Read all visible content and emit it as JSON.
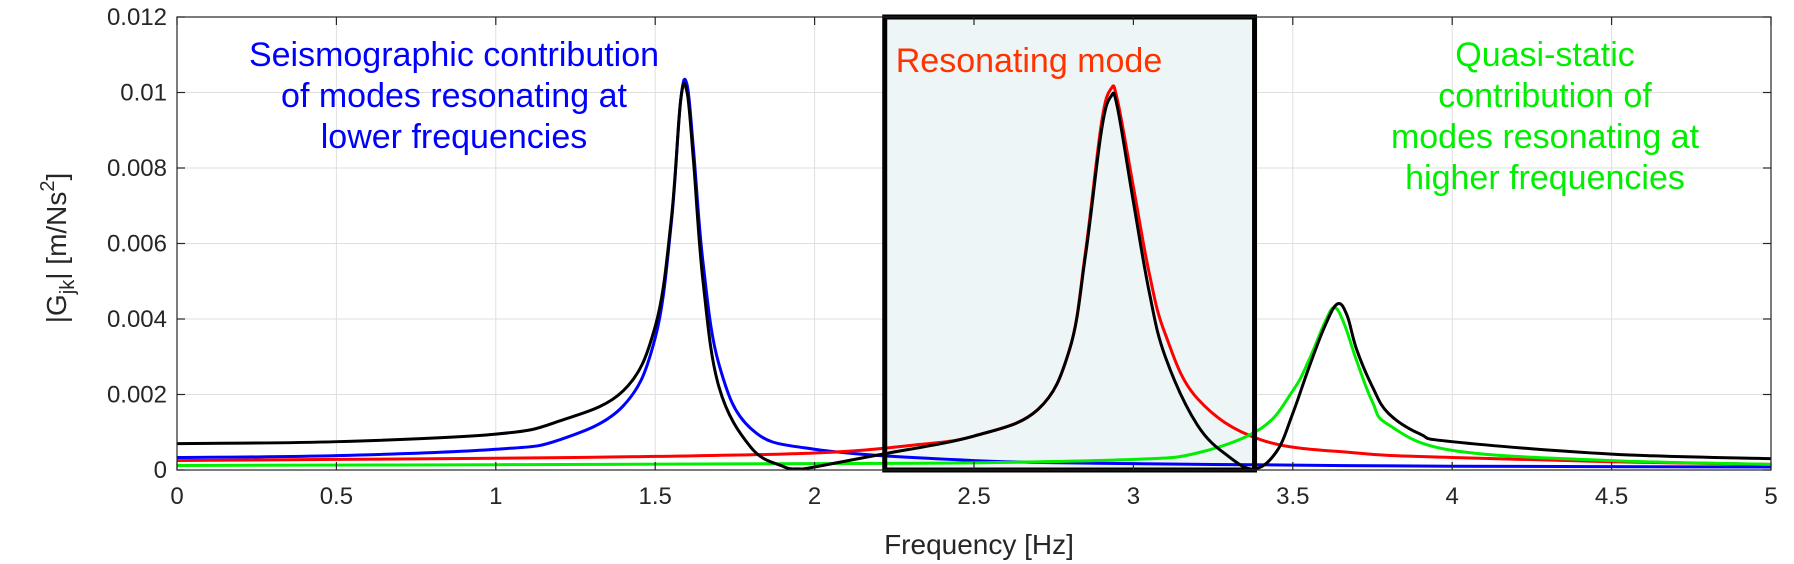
{
  "chart_data": {
    "type": "line",
    "title": "",
    "xlabel": "Frequency [Hz]",
    "ylabel": {
      "pre": "|G",
      "sub": "jk",
      "mid": "| [m/Ns",
      "sup": "2",
      "post": "]"
    },
    "xlim": [
      0,
      5
    ],
    "ylim": [
      0,
      0.012
    ],
    "xticks": [
      0,
      0.5,
      1,
      1.5,
      2,
      2.5,
      3,
      3.5,
      4,
      4.5,
      5
    ],
    "xtick_labels": [
      "0",
      "0.5",
      "1",
      "1.5",
      "2",
      "2.5",
      "3",
      "3.5",
      "4",
      "4.5",
      "5"
    ],
    "yticks": [
      0,
      0.002,
      0.004,
      0.006,
      0.008,
      0.01,
      0.012
    ],
    "ytick_labels": [
      "0",
      "0.002",
      "0.004",
      "0.006",
      "0.008",
      "0.01",
      "0.012"
    ],
    "grid": true,
    "highlight_band": {
      "x": [
        2.22,
        3.38
      ],
      "y": [
        0,
        0.012
      ],
      "fill": "#edf5f6",
      "stroke": "#000000"
    },
    "series": [
      {
        "color": "#0000ff",
        "x": [
          0,
          0.5,
          1,
          1.2,
          1.4,
          1.5,
          1.55,
          1.58,
          1.6,
          1.62,
          1.65,
          1.7,
          1.8,
          2,
          2.5,
          3,
          3.5,
          4,
          5
        ],
        "y": [
          0.00033,
          0.00038,
          0.00055,
          0.0008,
          0.0017,
          0.0035,
          0.0065,
          0.0098,
          0.0102,
          0.0085,
          0.0055,
          0.0028,
          0.0011,
          0.00055,
          0.00025,
          0.00017,
          0.00013,
          0.0001,
          8e-05
        ]
      },
      {
        "color": "#ff0000",
        "x": [
          0,
          0.5,
          1,
          1.5,
          2,
          2.3,
          2.5,
          2.7,
          2.8,
          2.85,
          2.9,
          2.93,
          2.95,
          3,
          3.05,
          3.1,
          3.2,
          3.4,
          3.7,
          4,
          4.5,
          5
        ],
        "y": [
          0.00025,
          0.00028,
          0.00031,
          0.00036,
          0.00045,
          0.00065,
          0.0009,
          0.0016,
          0.0032,
          0.0058,
          0.0092,
          0.0101,
          0.0098,
          0.0075,
          0.0052,
          0.0036,
          0.0019,
          0.0008,
          0.00045,
          0.00033,
          0.00022,
          0.00015
        ]
      },
      {
        "color": "#00ee00",
        "x": [
          0,
          1,
          2,
          2.5,
          3,
          3.2,
          3.4,
          3.5,
          3.55,
          3.6,
          3.63,
          3.66,
          3.7,
          3.75,
          3.8,
          4,
          4.5,
          5
        ],
        "y": [
          0.00012,
          0.00014,
          0.00017,
          0.00019,
          0.00028,
          0.00045,
          0.0011,
          0.0021,
          0.0029,
          0.0039,
          0.0043,
          0.0039,
          0.0029,
          0.0018,
          0.0012,
          0.00052,
          0.00025,
          0.00015
        ]
      },
      {
        "color": "#000000",
        "x": [
          0,
          0.5,
          1,
          1.2,
          1.4,
          1.5,
          1.55,
          1.58,
          1.6,
          1.62,
          1.65,
          1.7,
          1.8,
          1.9,
          1.95,
          2,
          2.2,
          2.5,
          2.7,
          2.8,
          2.85,
          2.9,
          2.93,
          2.95,
          3,
          3.05,
          3.1,
          3.2,
          3.3,
          3.38,
          3.45,
          3.5,
          3.55,
          3.6,
          3.64,
          3.67,
          3.7,
          3.75,
          3.8,
          3.9,
          4,
          4.5,
          5
        ],
        "y": [
          0.0007,
          0.00075,
          0.00095,
          0.0013,
          0.0021,
          0.0038,
          0.0066,
          0.0098,
          0.01,
          0.0082,
          0.005,
          0.0022,
          0.0006,
          0.0001,
          3e-05,
          8e-05,
          0.0004,
          0.0009,
          0.0016,
          0.0032,
          0.0057,
          0.009,
          0.0099,
          0.0096,
          0.0071,
          0.0047,
          0.003,
          0.0012,
          0.00035,
          3e-05,
          0.0005,
          0.0015,
          0.0027,
          0.0038,
          0.0044,
          0.0041,
          0.0032,
          0.0022,
          0.0015,
          0.00095,
          0.00075,
          0.00042,
          0.0003
        ]
      }
    ],
    "annotations": [
      {
        "lines": [
          "Seismographic contribution",
          "of modes resonating at",
          "lower frequencies"
        ],
        "color": "#0000ff"
      },
      {
        "lines": [
          "Resonating mode"
        ],
        "color": "#ff3300"
      },
      {
        "lines": [
          "Quasi-static",
          "contribution of",
          "modes resonating at",
          "higher frequencies"
        ],
        "color": "#00ee00"
      }
    ]
  }
}
